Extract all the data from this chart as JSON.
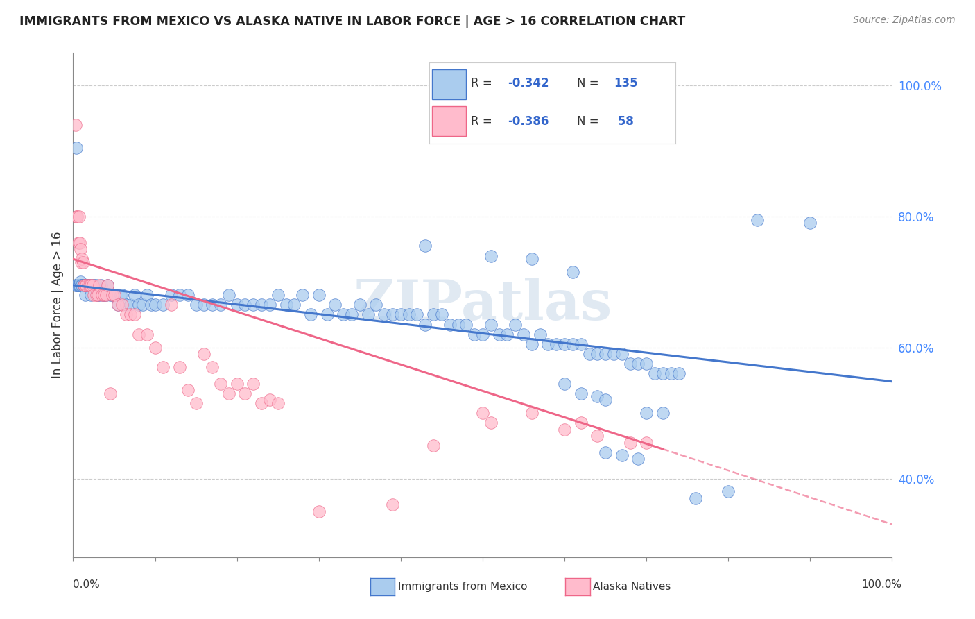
{
  "title": "IMMIGRANTS FROM MEXICO VS ALASKA NATIVE IN LABOR FORCE | AGE > 16 CORRELATION CHART",
  "source": "Source: ZipAtlas.com",
  "ylabel": "In Labor Force | Age > 16",
  "ylabel_right_ticks": [
    "40.0%",
    "60.0%",
    "80.0%",
    "100.0%"
  ],
  "ylabel_right_vals": [
    0.4,
    0.6,
    0.8,
    1.0
  ],
  "watermark": "ZIPatlas",
  "legend_label_blue": "Immigrants from Mexico",
  "legend_label_pink": "Alaska Natives",
  "color_blue": "#aaccee",
  "color_pink": "#ffbbcc",
  "line_blue": "#4477cc",
  "line_pink": "#ee6688",
  "xmin": 0.0,
  "xmax": 1.0,
  "ymin": 0.28,
  "ymax": 1.05,
  "blue_line": [
    [
      0.0,
      0.695
    ],
    [
      1.0,
      0.548
    ]
  ],
  "pink_line_solid": [
    [
      0.0,
      0.735
    ],
    [
      0.72,
      0.445
    ]
  ],
  "pink_line_dash": [
    [
      0.72,
      0.445
    ],
    [
      1.0,
      0.33
    ]
  ],
  "blue_scatter": [
    [
      0.003,
      0.695
    ],
    [
      0.004,
      0.695
    ],
    [
      0.005,
      0.695
    ],
    [
      0.006,
      0.695
    ],
    [
      0.007,
      0.695
    ],
    [
      0.008,
      0.695
    ],
    [
      0.009,
      0.7
    ],
    [
      0.01,
      0.695
    ],
    [
      0.011,
      0.695
    ],
    [
      0.012,
      0.695
    ],
    [
      0.013,
      0.695
    ],
    [
      0.014,
      0.695
    ],
    [
      0.015,
      0.68
    ],
    [
      0.016,
      0.695
    ],
    [
      0.017,
      0.695
    ],
    [
      0.018,
      0.695
    ],
    [
      0.019,
      0.695
    ],
    [
      0.02,
      0.695
    ],
    [
      0.022,
      0.68
    ],
    [
      0.024,
      0.695
    ],
    [
      0.026,
      0.695
    ],
    [
      0.028,
      0.695
    ],
    [
      0.03,
      0.68
    ],
    [
      0.032,
      0.68
    ],
    [
      0.034,
      0.695
    ],
    [
      0.036,
      0.68
    ],
    [
      0.038,
      0.68
    ],
    [
      0.04,
      0.68
    ],
    [
      0.042,
      0.695
    ],
    [
      0.045,
      0.68
    ],
    [
      0.048,
      0.68
    ],
    [
      0.05,
      0.68
    ],
    [
      0.055,
      0.665
    ],
    [
      0.058,
      0.68
    ],
    [
      0.06,
      0.68
    ],
    [
      0.065,
      0.665
    ],
    [
      0.07,
      0.665
    ],
    [
      0.075,
      0.68
    ],
    [
      0.08,
      0.665
    ],
    [
      0.085,
      0.665
    ],
    [
      0.09,
      0.68
    ],
    [
      0.095,
      0.665
    ],
    [
      0.1,
      0.665
    ],
    [
      0.11,
      0.665
    ],
    [
      0.12,
      0.68
    ],
    [
      0.13,
      0.68
    ],
    [
      0.14,
      0.68
    ],
    [
      0.15,
      0.665
    ],
    [
      0.16,
      0.665
    ],
    [
      0.17,
      0.665
    ],
    [
      0.18,
      0.665
    ],
    [
      0.19,
      0.68
    ],
    [
      0.2,
      0.665
    ],
    [
      0.21,
      0.665
    ],
    [
      0.22,
      0.665
    ],
    [
      0.23,
      0.665
    ],
    [
      0.24,
      0.665
    ],
    [
      0.25,
      0.68
    ],
    [
      0.26,
      0.665
    ],
    [
      0.27,
      0.665
    ],
    [
      0.28,
      0.68
    ],
    [
      0.29,
      0.65
    ],
    [
      0.3,
      0.68
    ],
    [
      0.31,
      0.65
    ],
    [
      0.32,
      0.665
    ],
    [
      0.33,
      0.65
    ],
    [
      0.34,
      0.65
    ],
    [
      0.35,
      0.665
    ],
    [
      0.36,
      0.65
    ],
    [
      0.37,
      0.665
    ],
    [
      0.38,
      0.65
    ],
    [
      0.39,
      0.65
    ],
    [
      0.4,
      0.65
    ],
    [
      0.41,
      0.65
    ],
    [
      0.42,
      0.65
    ],
    [
      0.43,
      0.635
    ],
    [
      0.44,
      0.65
    ],
    [
      0.45,
      0.65
    ],
    [
      0.46,
      0.635
    ],
    [
      0.47,
      0.635
    ],
    [
      0.48,
      0.635
    ],
    [
      0.49,
      0.62
    ],
    [
      0.5,
      0.62
    ],
    [
      0.51,
      0.635
    ],
    [
      0.52,
      0.62
    ],
    [
      0.53,
      0.62
    ],
    [
      0.54,
      0.635
    ],
    [
      0.55,
      0.62
    ],
    [
      0.56,
      0.605
    ],
    [
      0.57,
      0.62
    ],
    [
      0.58,
      0.605
    ],
    [
      0.59,
      0.605
    ],
    [
      0.6,
      0.605
    ],
    [
      0.61,
      0.605
    ],
    [
      0.62,
      0.605
    ],
    [
      0.63,
      0.59
    ],
    [
      0.64,
      0.59
    ],
    [
      0.65,
      0.59
    ],
    [
      0.66,
      0.59
    ],
    [
      0.67,
      0.59
    ],
    [
      0.68,
      0.575
    ],
    [
      0.69,
      0.575
    ],
    [
      0.7,
      0.575
    ],
    [
      0.71,
      0.56
    ],
    [
      0.72,
      0.56
    ],
    [
      0.73,
      0.56
    ],
    [
      0.74,
      0.56
    ],
    [
      0.004,
      0.905
    ],
    [
      0.43,
      0.755
    ],
    [
      0.51,
      0.74
    ],
    [
      0.56,
      0.735
    ],
    [
      0.61,
      0.715
    ],
    [
      0.835,
      0.795
    ],
    [
      0.9,
      0.79
    ],
    [
      0.6,
      0.545
    ],
    [
      0.62,
      0.53
    ],
    [
      0.64,
      0.525
    ],
    [
      0.65,
      0.52
    ],
    [
      0.7,
      0.5
    ],
    [
      0.72,
      0.5
    ],
    [
      0.65,
      0.44
    ],
    [
      0.67,
      0.435
    ],
    [
      0.69,
      0.43
    ],
    [
      0.76,
      0.37
    ],
    [
      0.8,
      0.38
    ]
  ],
  "pink_scatter": [
    [
      0.003,
      0.94
    ],
    [
      0.004,
      0.8
    ],
    [
      0.005,
      0.8
    ],
    [
      0.006,
      0.76
    ],
    [
      0.007,
      0.8
    ],
    [
      0.008,
      0.76
    ],
    [
      0.009,
      0.75
    ],
    [
      0.01,
      0.73
    ],
    [
      0.011,
      0.735
    ],
    [
      0.012,
      0.73
    ],
    [
      0.013,
      0.695
    ],
    [
      0.015,
      0.695
    ],
    [
      0.016,
      0.695
    ],
    [
      0.018,
      0.695
    ],
    [
      0.02,
      0.695
    ],
    [
      0.022,
      0.695
    ],
    [
      0.024,
      0.695
    ],
    [
      0.025,
      0.68
    ],
    [
      0.028,
      0.68
    ],
    [
      0.03,
      0.68
    ],
    [
      0.032,
      0.695
    ],
    [
      0.035,
      0.68
    ],
    [
      0.038,
      0.68
    ],
    [
      0.04,
      0.68
    ],
    [
      0.042,
      0.695
    ],
    [
      0.045,
      0.53
    ],
    [
      0.048,
      0.68
    ],
    [
      0.05,
      0.68
    ],
    [
      0.055,
      0.665
    ],
    [
      0.06,
      0.665
    ],
    [
      0.065,
      0.65
    ],
    [
      0.07,
      0.65
    ],
    [
      0.075,
      0.65
    ],
    [
      0.08,
      0.62
    ],
    [
      0.09,
      0.62
    ],
    [
      0.1,
      0.6
    ],
    [
      0.11,
      0.57
    ],
    [
      0.12,
      0.665
    ],
    [
      0.13,
      0.57
    ],
    [
      0.14,
      0.535
    ],
    [
      0.15,
      0.515
    ],
    [
      0.16,
      0.59
    ],
    [
      0.17,
      0.57
    ],
    [
      0.18,
      0.545
    ],
    [
      0.19,
      0.53
    ],
    [
      0.2,
      0.545
    ],
    [
      0.21,
      0.53
    ],
    [
      0.22,
      0.545
    ],
    [
      0.23,
      0.515
    ],
    [
      0.24,
      0.52
    ],
    [
      0.25,
      0.515
    ],
    [
      0.3,
      0.35
    ],
    [
      0.39,
      0.36
    ],
    [
      0.44,
      0.45
    ],
    [
      0.5,
      0.5
    ],
    [
      0.51,
      0.485
    ],
    [
      0.56,
      0.5
    ],
    [
      0.6,
      0.475
    ],
    [
      0.62,
      0.485
    ],
    [
      0.64,
      0.465
    ],
    [
      0.68,
      0.455
    ],
    [
      0.7,
      0.455
    ]
  ]
}
